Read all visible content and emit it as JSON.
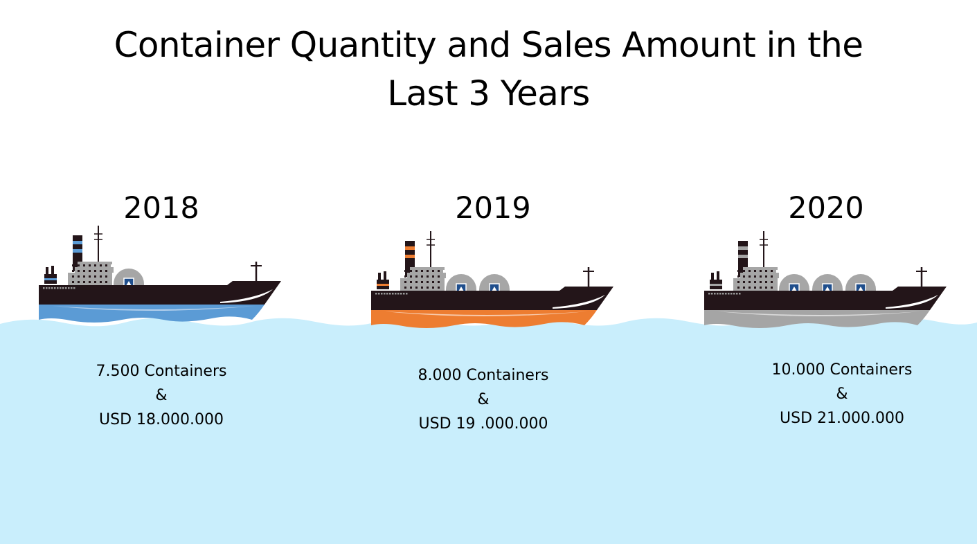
{
  "title": {
    "line1": "Container Quantity and Sales Amount in the",
    "line2": "Last 3 Years"
  },
  "colors": {
    "water": "#c9eefc",
    "hull_dark": "#231519",
    "superstructure": "#a6a6a6",
    "container_logo": "#1f4e8c"
  },
  "years": [
    {
      "year": "2018",
      "containers": "7.500 Containers",
      "connector": "&",
      "sales": "USD 18.000.000",
      "accent": "#5b9bd5",
      "accent_light": "#b4d0ec",
      "tanks": 1
    },
    {
      "year": "2019",
      "containers": "8.000 Containers",
      "connector": "&",
      "sales": "USD 19 .000.000",
      "accent": "#ed7d31",
      "accent_light": "#f8cbad",
      "tanks": 2
    },
    {
      "year": "2020",
      "containers": "10.000 Containers",
      "connector": "&",
      "sales": "USD 21.000.000",
      "accent": "#a5a5a5",
      "accent_light": "#d9d9d9",
      "tanks": 3
    }
  ]
}
